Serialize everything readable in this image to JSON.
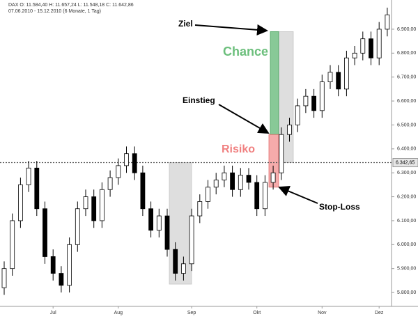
{
  "chart_data": {
    "type": "candlestick",
    "header": [
      "DAX  O: 11.584,40  H: 11.657,24  L: 11.548,18  C: 11.642,86",
      "07.06.2010 - 15.12.2010  (6 Monate, 1 Tag)"
    ],
    "categories": [
      null,
      null,
      null,
      null,
      null,
      null,
      "Jul",
      null,
      null,
      null,
      null,
      null,
      null,
      null,
      "Aug",
      null,
      null,
      null,
      null,
      null,
      null,
      null,
      null,
      "Sep",
      null,
      null,
      null,
      null,
      null,
      null,
      null,
      "Okt",
      null,
      null,
      null,
      null,
      null,
      null,
      null,
      "Nov",
      null,
      null,
      null,
      null,
      null,
      null,
      "Dez",
      null
    ],
    "open": [
      5820,
      5900,
      6100,
      6250,
      6320,
      6150,
      5950,
      5880,
      5830,
      6000,
      6150,
      6200,
      6100,
      6230,
      6280,
      6330,
      6380,
      6300,
      6150,
      6060,
      6120,
      5980,
      5880,
      5920,
      6120,
      6180,
      6240,
      6270,
      6300,
      6230,
      6290,
      6260,
      6150,
      6260,
      6300,
      6460,
      6500,
      6580,
      6620,
      6560,
      6680,
      6720,
      6650,
      6780,
      6800,
      6860,
      6780,
      6900
    ],
    "high": [
      5930,
      6130,
      6280,
      6350,
      6350,
      6180,
      5980,
      5910,
      6030,
      6180,
      6230,
      6230,
      6260,
      6310,
      6360,
      6410,
      6410,
      6330,
      6180,
      6150,
      6150,
      6010,
      5950,
      6150,
      6210,
      6270,
      6300,
      6330,
      6330,
      6320,
      6320,
      6290,
      6290,
      6330,
      6490,
      6530,
      6610,
      6650,
      6650,
      6710,
      6750,
      6750,
      6810,
      6830,
      6890,
      6890,
      6930,
      6990
    ],
    "low": [
      5790,
      5870,
      6070,
      6220,
      6120,
      5920,
      5850,
      5800,
      5800,
      5970,
      6120,
      6070,
      6070,
      6200,
      6250,
      6300,
      6270,
      6120,
      6030,
      6030,
      5950,
      5850,
      5850,
      5890,
      6090,
      6150,
      6210,
      6240,
      6200,
      6200,
      6230,
      6120,
      6120,
      6230,
      6270,
      6430,
      6470,
      6550,
      6530,
      6530,
      6650,
      6620,
      6620,
      6750,
      6770,
      6750,
      6750,
      6870
    ],
    "close": [
      5900,
      6100,
      6250,
      6320,
      6150,
      5950,
      5880,
      5830,
      6000,
      6150,
      6200,
      6100,
      6230,
      6280,
      6330,
      6380,
      6300,
      6150,
      6060,
      6120,
      5980,
      5880,
      5920,
      6120,
      6180,
      6240,
      6270,
      6300,
      6230,
      6290,
      6260,
      6150,
      6260,
      6300,
      6460,
      6500,
      6580,
      6620,
      6560,
      6680,
      6720,
      6650,
      6780,
      6800,
      6860,
      6780,
      6900,
      6960
    ],
    "ylim": [
      5742,
      7022
    ],
    "yticks": [
      {
        "value": 5800,
        "label": "5.800,00"
      },
      {
        "value": 5900,
        "label": "5.900,00"
      },
      {
        "value": 6000,
        "label": "6.000,00"
      },
      {
        "value": 6100,
        "label": "6.100,00"
      },
      {
        "value": 6200,
        "label": "6.200,00"
      },
      {
        "value": 6300,
        "label": "6.300,00"
      },
      {
        "value": 6400,
        "label": "6.400,00"
      },
      {
        "value": 6500,
        "label": "6.500,00"
      },
      {
        "value": 6600,
        "label": "6.600,00"
      },
      {
        "value": 6700,
        "label": "6.700,00"
      },
      {
        "value": 6800,
        "label": "6.800,00"
      },
      {
        "value": 6900,
        "label": "6.900,00"
      }
    ],
    "level": {
      "value": 6342.65,
      "label": "6.342,65"
    },
    "zones": [
      {
        "from": 6342.65,
        "to": 5835,
        "color": "#d9d9d9"
      },
      {
        "from": 6890,
        "to": 6342.65,
        "color": "#d9d9d9"
      },
      {
        "from": 6890,
        "to": 6460,
        "color": "#7cc48c"
      },
      {
        "from": 6460,
        "to": 6240,
        "color": "#f4a3a3"
      }
    ],
    "annotations": [
      "Ziel",
      "Chance",
      "Einstieg",
      "Risiko",
      "Stop-Loss"
    ]
  }
}
